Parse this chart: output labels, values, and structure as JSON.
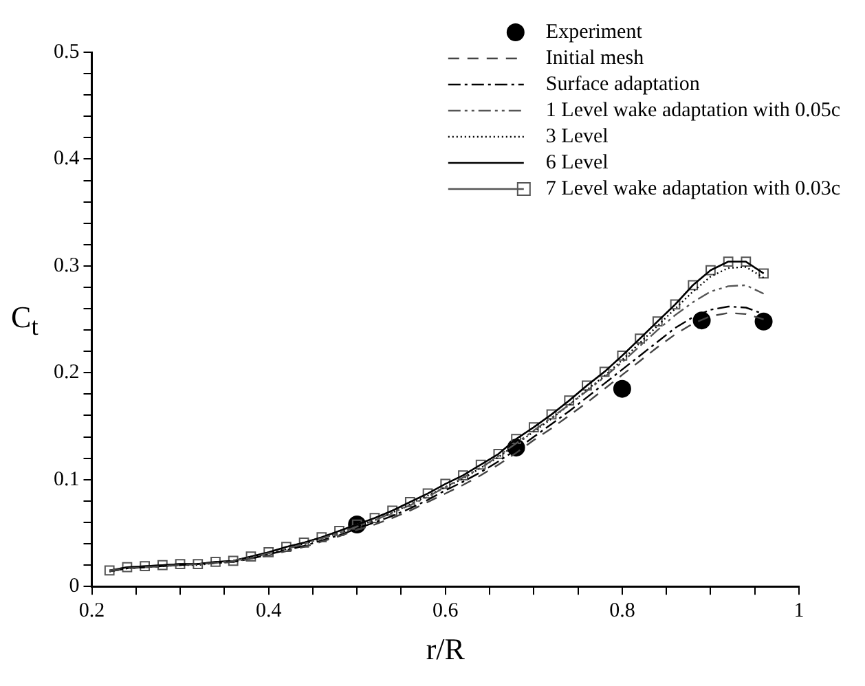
{
  "chart_data": {
    "type": "line",
    "xlabel": "r/R",
    "ylabel": "C$_{t}$",
    "xlim": [
      0.2,
      1
    ],
    "ylim": [
      0,
      0.5
    ],
    "xticks": [
      0.2,
      {
        "value": 0.25,
        "label": null
      },
      {
        "value": 0.3,
        "label": null
      },
      {
        "value": 0.35,
        "label": null
      },
      0.4,
      {
        "value": 0.45,
        "label": null
      },
      {
        "value": 0.5,
        "label": null
      },
      {
        "value": 0.55,
        "label": null
      },
      0.6,
      {
        "value": 0.65,
        "label": null
      },
      {
        "value": 0.7,
        "label": null
      },
      {
        "value": 0.75,
        "label": null
      },
      0.8,
      {
        "value": 0.85,
        "label": null
      },
      {
        "value": 0.9,
        "label": null
      },
      {
        "value": 0.95,
        "label": null
      },
      1
    ],
    "yticks": [
      0,
      {
        "value": 0.02,
        "label": null
      },
      {
        "value": 0.04,
        "label": null
      },
      {
        "value": 0.06,
        "label": null
      },
      {
        "value": 0.08,
        "label": null
      },
      0.1,
      {
        "value": 0.12,
        "label": null
      },
      {
        "value": 0.14,
        "label": null
      },
      {
        "value": 0.16,
        "label": null
      },
      {
        "value": 0.18,
        "label": null
      },
      0.2,
      {
        "value": 0.22,
        "label": null
      },
      {
        "value": 0.24,
        "label": null
      },
      {
        "value": 0.26,
        "label": null
      },
      {
        "value": 0.28,
        "label": null
      },
      0.3,
      {
        "value": 0.32,
        "label": null
      },
      {
        "value": 0.34,
        "label": null
      },
      {
        "value": 0.36,
        "label": null
      },
      {
        "value": 0.38,
        "label": null
      },
      0.4,
      {
        "value": 0.42,
        "label": null
      },
      {
        "value": 0.44,
        "label": null
      },
      {
        "value": 0.46,
        "label": null
      },
      {
        "value": 0.48,
        "label": null
      },
      0.5
    ],
    "grid": false,
    "legend": "top right",
    "x": [
      0.22,
      0.24,
      0.26,
      0.28,
      0.3,
      0.32,
      0.34,
      0.36,
      0.38,
      0.4,
      0.42,
      0.44,
      0.46,
      0.48,
      0.5,
      0.52,
      0.54,
      0.56,
      0.58,
      0.6,
      0.62,
      0.64,
      0.66,
      0.68,
      0.7,
      0.72,
      0.74,
      0.76,
      0.78,
      0.8,
      0.82,
      0.84,
      0.86,
      0.88,
      0.9,
      0.92,
      0.94,
      0.96
    ],
    "series": [
      {
        "name": "Experiment",
        "type": "scatter",
        "marker": "circle",
        "color": "#000000",
        "x": [
          0.5,
          0.68,
          0.8,
          0.89,
          0.96
        ],
        "values": [
          0.058,
          0.13,
          0.185,
          0.249,
          0.248
        ]
      },
      {
        "name": "Initial mesh",
        "line_style": "dashed",
        "marker": "none",
        "color": "#444444",
        "values": [
          0.014,
          0.017,
          0.018,
          0.019,
          0.02,
          0.021,
          0.022,
          0.023,
          0.026,
          0.029,
          0.033,
          0.037,
          0.042,
          0.047,
          0.053,
          0.058,
          0.064,
          0.071,
          0.079,
          0.087,
          0.095,
          0.104,
          0.114,
          0.125,
          0.137,
          0.148,
          0.16,
          0.172,
          0.185,
          0.198,
          0.211,
          0.224,
          0.236,
          0.246,
          0.253,
          0.256,
          0.255,
          0.25
        ]
      },
      {
        "name": "Surface adaptation",
        "line_style": "dashdot",
        "marker": "none",
        "color": "#000000",
        "values": [
          0.014,
          0.017,
          0.018,
          0.019,
          0.02,
          0.021,
          0.022,
          0.023,
          0.026,
          0.03,
          0.034,
          0.038,
          0.043,
          0.048,
          0.054,
          0.06,
          0.066,
          0.073,
          0.081,
          0.09,
          0.098,
          0.107,
          0.117,
          0.128,
          0.14,
          0.152,
          0.164,
          0.177,
          0.19,
          0.203,
          0.216,
          0.229,
          0.242,
          0.252,
          0.259,
          0.262,
          0.261,
          0.255
        ]
      },
      {
        "name": "1 Level wake adaptation with 0.05c",
        "line_style": "dashdotdot",
        "marker": "none",
        "color": "#555555",
        "values": [
          0.015,
          0.017,
          0.018,
          0.019,
          0.02,
          0.021,
          0.022,
          0.024,
          0.027,
          0.031,
          0.035,
          0.04,
          0.045,
          0.05,
          0.056,
          0.062,
          0.069,
          0.076,
          0.084,
          0.093,
          0.102,
          0.111,
          0.122,
          0.134,
          0.146,
          0.158,
          0.17,
          0.183,
          0.196,
          0.21,
          0.225,
          0.24,
          0.254,
          0.266,
          0.276,
          0.281,
          0.282,
          0.274
        ]
      },
      {
        "name": "3 Level",
        "line_style": "dotted",
        "marker": "none",
        "color": "#000000",
        "values": [
          0.014,
          0.017,
          0.018,
          0.019,
          0.02,
          0.02,
          0.022,
          0.023,
          0.027,
          0.031,
          0.035,
          0.04,
          0.045,
          0.05,
          0.056,
          0.062,
          0.069,
          0.077,
          0.085,
          0.093,
          0.101,
          0.111,
          0.121,
          0.133,
          0.145,
          0.157,
          0.17,
          0.184,
          0.197,
          0.212,
          0.228,
          0.244,
          0.26,
          0.276,
          0.29,
          0.298,
          0.299,
          0.289
        ]
      },
      {
        "name": "6 Level",
        "line_style": "solid",
        "marker": "none",
        "color": "#000000",
        "values": [
          0.015,
          0.018,
          0.019,
          0.02,
          0.021,
          0.021,
          0.023,
          0.024,
          0.028,
          0.032,
          0.037,
          0.041,
          0.046,
          0.052,
          0.058,
          0.064,
          0.071,
          0.079,
          0.087,
          0.096,
          0.104,
          0.114,
          0.124,
          0.138,
          0.149,
          0.161,
          0.174,
          0.188,
          0.201,
          0.216,
          0.232,
          0.248,
          0.264,
          0.282,
          0.296,
          0.304,
          0.304,
          0.293
        ]
      },
      {
        "name": "7 Level wake adaptation with 0.03c",
        "line_style": "solid",
        "marker": "square",
        "color": "#555555",
        "values": [
          0.015,
          0.018,
          0.019,
          0.02,
          0.021,
          0.021,
          0.023,
          0.024,
          0.028,
          0.032,
          0.037,
          0.041,
          0.046,
          0.052,
          0.058,
          0.064,
          0.071,
          0.079,
          0.087,
          0.096,
          0.104,
          0.114,
          0.124,
          0.138,
          0.149,
          0.161,
          0.174,
          0.188,
          0.201,
          0.216,
          0.232,
          0.248,
          0.264,
          0.282,
          0.296,
          0.304,
          0.304,
          0.293
        ]
      }
    ]
  }
}
